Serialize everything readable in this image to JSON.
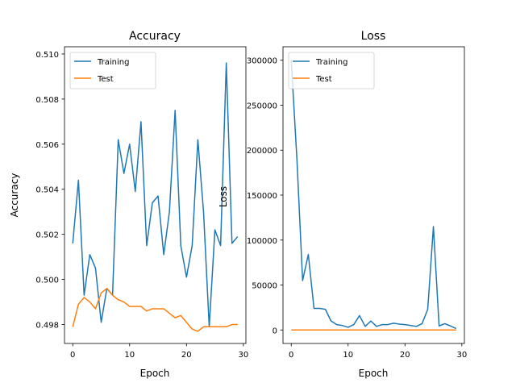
{
  "chart_data": [
    {
      "type": "line",
      "title": "Accuracy",
      "xlabel": "Epoch",
      "ylabel": "Accuracy",
      "xlim": [
        -1.45,
        30.45
      ],
      "ylim": [
        0.49716,
        0.51032
      ],
      "xticks": [
        0,
        10,
        20,
        30
      ],
      "yticks": [
        0.498,
        0.5,
        0.502,
        0.504,
        0.506,
        0.508,
        0.51
      ],
      "ytick_labels": [
        "0.498",
        "0.500",
        "0.502",
        "0.504",
        "0.506",
        "0.508",
        "0.510"
      ],
      "legend": "top-left",
      "grid": false,
      "x": [
        0,
        1,
        2,
        3,
        4,
        5,
        6,
        7,
        8,
        9,
        10,
        11,
        12,
        13,
        14,
        15,
        16,
        17,
        18,
        19,
        20,
        21,
        22,
        23,
        24,
        25,
        26,
        27,
        28,
        29
      ],
      "series": [
        {
          "name": "Training",
          "color": "#1f77b4",
          "values": [
            0.5016,
            0.5044,
            0.4993,
            0.5011,
            0.5005,
            0.4981,
            0.4996,
            0.4993,
            0.5062,
            0.5047,
            0.506,
            0.5039,
            0.507,
            0.5015,
            0.5034,
            0.5037,
            0.5011,
            0.503,
            0.5075,
            0.5015,
            0.5001,
            0.5015,
            0.5062,
            0.503,
            0.4979,
            0.5022,
            0.5015,
            0.5096,
            0.5016,
            0.5019
          ]
        },
        {
          "name": "Test",
          "color": "#ff7f0e",
          "values": [
            0.4979,
            0.4989,
            0.4992,
            0.499,
            0.4987,
            0.4994,
            0.4996,
            0.4993,
            0.4991,
            0.499,
            0.4988,
            0.4988,
            0.4988,
            0.4986,
            0.4987,
            0.4987,
            0.4987,
            0.4985,
            0.4983,
            0.4984,
            0.4981,
            0.4978,
            0.4977,
            0.4979,
            0.4979,
            0.4979,
            0.4979,
            0.4979,
            0.498,
            0.498
          ]
        }
      ]
    },
    {
      "type": "line",
      "title": "Loss",
      "xlabel": "Epoch",
      "ylabel": "Loss",
      "xlim": [
        -1.45,
        30.45
      ],
      "ylim": [
        -15000,
        315000
      ],
      "xticks": [
        0,
        10,
        20,
        30
      ],
      "yticks": [
        0,
        50000,
        100000,
        150000,
        200000,
        250000,
        300000
      ],
      "ytick_labels": [
        "0",
        "50000",
        "100000",
        "150000",
        "200000",
        "250000",
        "300000"
      ],
      "legend": "top-left",
      "grid": false,
      "x": [
        0,
        1,
        2,
        3,
        4,
        5,
        6,
        7,
        8,
        9,
        10,
        11,
        12,
        13,
        14,
        15,
        16,
        17,
        18,
        19,
        20,
        21,
        22,
        23,
        24,
        25,
        26,
        27,
        28,
        29
      ],
      "series": [
        {
          "name": "Training",
          "color": "#1f77b4",
          "values": [
            300000,
            190000,
            55000,
            84000,
            24000,
            24000,
            23000,
            10000,
            6000,
            5000,
            3000,
            6000,
            16000,
            4000,
            10000,
            4000,
            6000,
            6000,
            7500,
            6500,
            6000,
            5000,
            4000,
            7000,
            23000,
            115000,
            4500,
            7000,
            4500,
            1500
          ]
        },
        {
          "name": "Test",
          "color": "#ff7f0e",
          "values": [
            0,
            0,
            0,
            0,
            0,
            0,
            0,
            0,
            0,
            0,
            0,
            0,
            0,
            0,
            0,
            0,
            0,
            0,
            0,
            0,
            0,
            0,
            0,
            0,
            0,
            0,
            0,
            0,
            0,
            0
          ]
        }
      ]
    }
  ]
}
